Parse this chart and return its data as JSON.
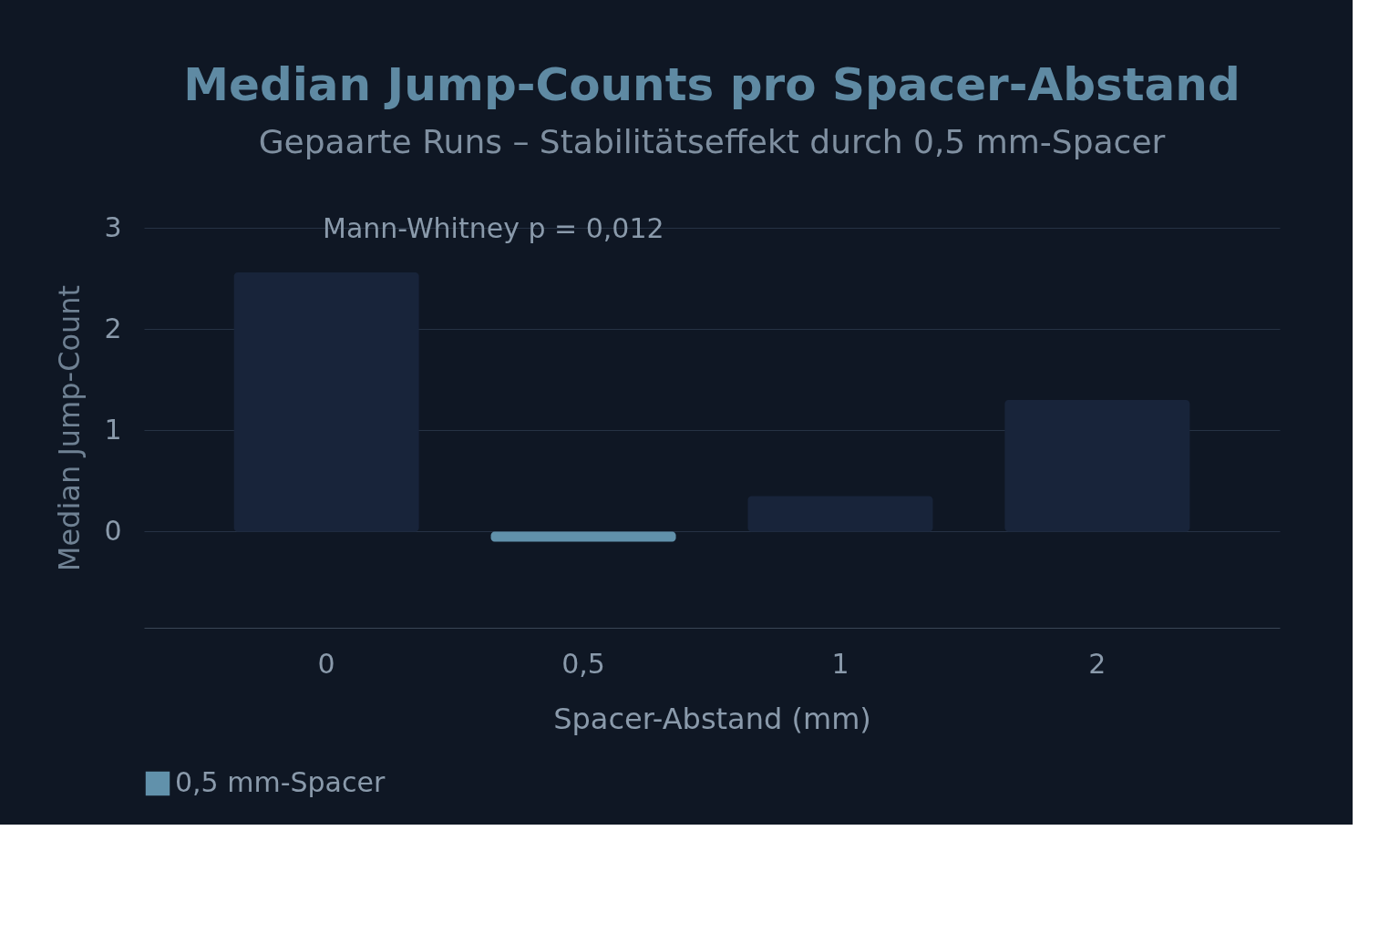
{
  "chart_data": {
    "type": "bar",
    "title": "Median Jump-Counts pro Spacer-Abstand",
    "subtitle": "Gepaarte Runs – Stabilitätseffekt durch 0,5 mm-Spacer",
    "xlabel": "Spacer-Abstand (mm)",
    "ylabel": "Median Jump-Count",
    "categories": [
      "0",
      "0,5",
      "1",
      "2"
    ],
    "series": [
      {
        "name": "0,5 mm-Spacer",
        "color": "#6191ab",
        "values": [
          null,
          -0.1,
          null,
          null
        ]
      },
      {
        "color": "#18243a",
        "values": [
          2.56,
          null,
          0.35,
          1.3
        ]
      }
    ],
    "ylim": [
      -0.95,
      3
    ],
    "yticks": [
      0,
      1,
      2,
      3
    ],
    "annotations": [
      "Mann-Whitney p = 0,012"
    ],
    "grid": "y",
    "legend": "bottom"
  }
}
